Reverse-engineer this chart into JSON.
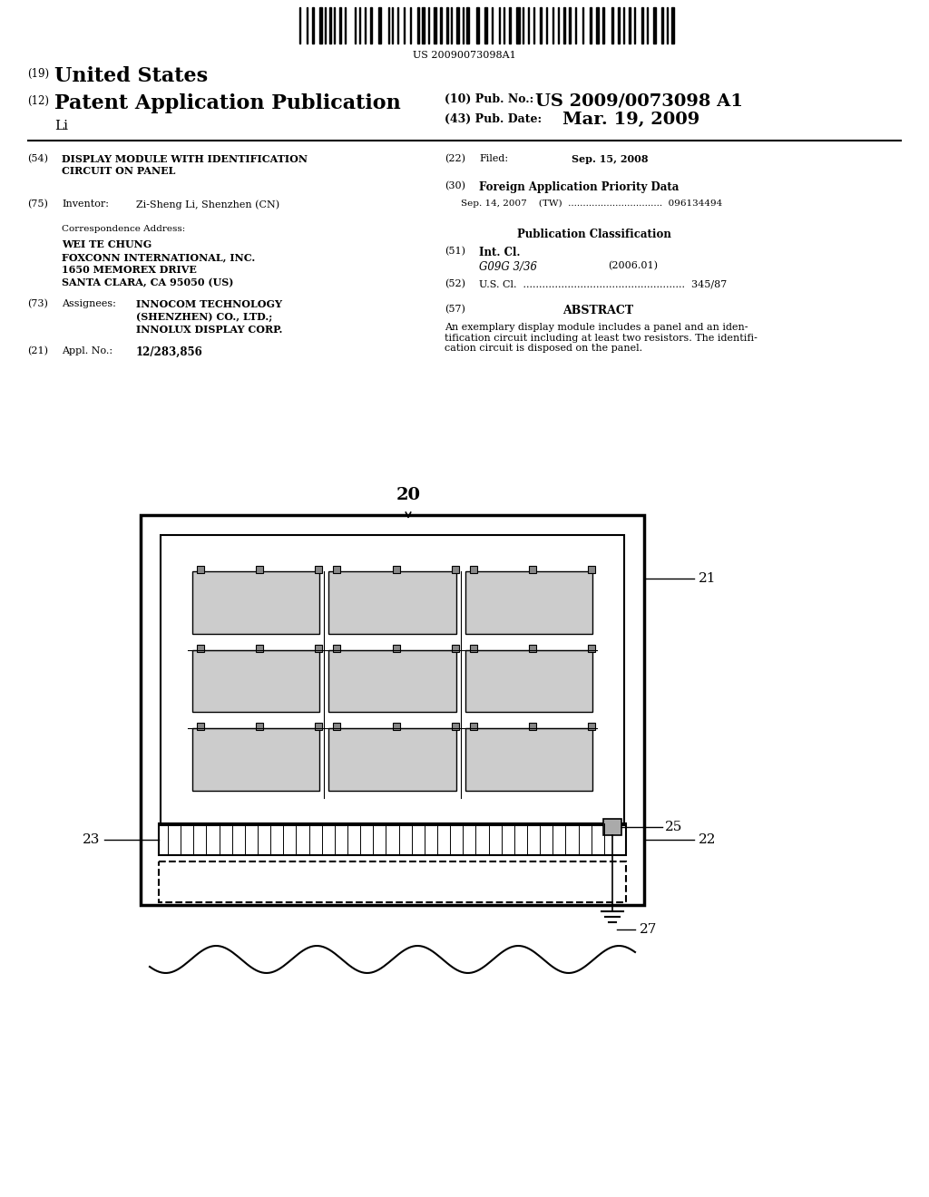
{
  "background_color": "#ffffff",
  "barcode_text": "US 20090073098A1",
  "header_19": "(19)",
  "header_19_text": "United States",
  "header_12": "(12)",
  "header_12_text": "Patent Application Publication",
  "header_li": "Li",
  "header_10_label": "(10) Pub. No.:",
  "header_10_value": "US 2009/0073098 A1",
  "header_43_label": "(43) Pub. Date:",
  "header_43_value": "Mar. 19, 2009",
  "field_54_num": "(54)",
  "field_54_text": "DISPLAY MODULE WITH IDENTIFICATION\nCIRCUIT ON PANEL",
  "field_22_num": "(22)",
  "field_22_label": "Filed:",
  "field_22_value": "Sep. 15, 2008",
  "field_75_num": "(75)",
  "field_75_label": "Inventor:",
  "field_75_value": "Zi-Sheng Li, Shenzhen (CN)",
  "field_30_num": "(30)",
  "field_30_text": "Foreign Application Priority Data",
  "field_30_entry": "Sep. 14, 2007    (TW)  ................................  096134494",
  "corr_label": "Correspondence Address:",
  "corr_line1": "WEI TE CHUNG",
  "corr_line2": "FOXCONN INTERNATIONAL, INC.",
  "corr_line3": "1650 MEMOREX DRIVE",
  "corr_line4": "SANTA CLARA, CA 95050 (US)",
  "pub_class_label": "Publication Classification",
  "field_51_num": "(51)",
  "field_51_label": "Int. Cl.",
  "field_51_sub": "G09G 3/36",
  "field_51_year": "(2006.01)",
  "field_52_num": "(52)",
  "field_52_text": "U.S. Cl.  ...................................................  345/87",
  "field_73_num": "(73)",
  "field_73_label": "Assignees:",
  "field_73_value1": "INNOCOM TECHNOLOGY",
  "field_73_value2": "(SHENZHEN) CO., LTD.;",
  "field_73_value3": "INNOLUX DISPLAY CORP.",
  "field_57_num": "(57)",
  "field_57_label": "ABSTRACT",
  "field_57_text": "An exemplary display module includes a panel and an iden-\ntification circuit including at least two resistors. The identifi-\ncation circuit is disposed on the panel.",
  "field_21_num": "(21)",
  "field_21_label": "Appl. No.:",
  "field_21_value": "12/283,856",
  "label_20": "20",
  "label_21": "21",
  "label_22": "22",
  "label_23": "23",
  "label_25": "25",
  "label_27": "27"
}
